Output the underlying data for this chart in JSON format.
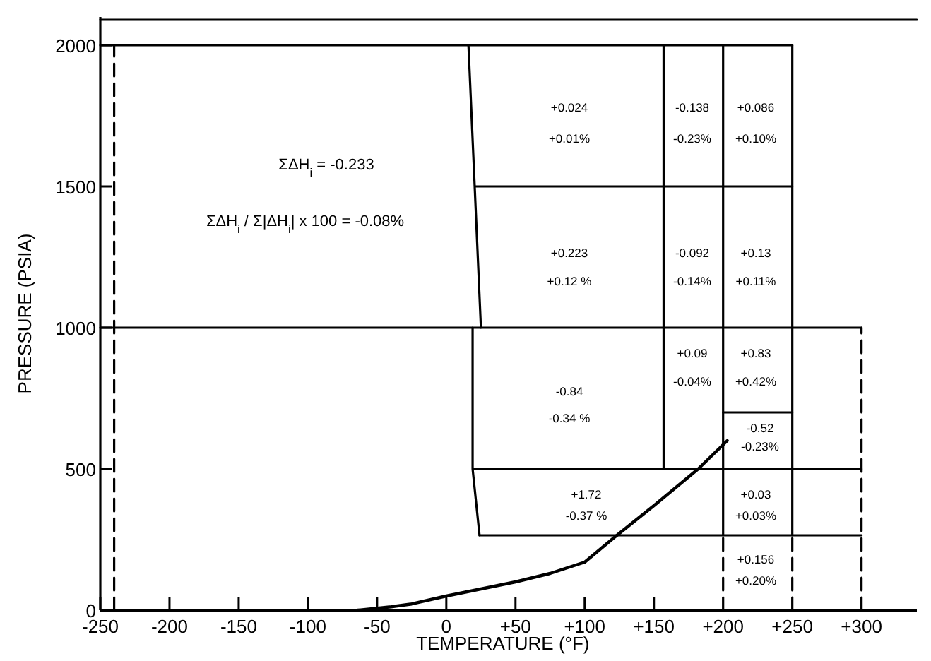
{
  "chart_data": {
    "type": "line",
    "xlabel": "TEMPERATURE (°F)",
    "ylabel": "PRESSURE (PSIA)",
    "xlim": [
      -250,
      340
    ],
    "ylim": [
      0,
      2100
    ],
    "xticks": [
      -250,
      -200,
      -150,
      -100,
      -50,
      0,
      {
        "value": 50,
        "label": "+50"
      },
      {
        "value": 100,
        "label": "+100"
      },
      {
        "value": 150,
        "label": "+150"
      },
      {
        "value": 200,
        "label": "+200"
      },
      {
        "value": 250,
        "label": "+250"
      },
      {
        "value": 300,
        "label": "+300"
      }
    ],
    "yticks": [
      0,
      500,
      1000,
      1500,
      2000
    ],
    "grid": false,
    "series": [
      {
        "color": "#000000",
        "line_style": "solid",
        "x": [
          -250,
          340
        ],
        "values": [
          2090,
          2090
        ]
      },
      {
        "color": "#000000",
        "line_style": "solid",
        "x": [
          -250,
          250
        ],
        "values": [
          2000,
          2000
        ]
      },
      {
        "color": "#000000",
        "line_style": "solid",
        "x": [
          21,
          250
        ],
        "values": [
          1500,
          1500
        ]
      },
      {
        "color": "#000000",
        "line_style": "solid",
        "x": [
          -250,
          300
        ],
        "values": [
          1000,
          1000
        ]
      },
      {
        "color": "#000000",
        "line_style": "solid",
        "x": [
          20,
          300
        ],
        "values": [
          500,
          500
        ]
      },
      {
        "color": "#000000",
        "line_style": "solid",
        "x": [
          24,
          300
        ],
        "values": [
          265,
          265
        ]
      },
      {
        "color": "#000000",
        "line_style": "solid",
        "x": [
          200,
          250
        ],
        "values": [
          700,
          700
        ]
      },
      {
        "color": "#000000",
        "line_style": "solid",
        "x": [
          16,
          25
        ],
        "values": [
          2000,
          1000
        ]
      },
      {
        "color": "#000000",
        "line_style": "solid",
        "x": [
          19,
          19,
          24
        ],
        "values": [
          1000,
          500,
          265
        ]
      },
      {
        "color": "#000000",
        "line_style": "solid",
        "x": [
          157,
          157
        ],
        "values": [
          2000,
          500
        ]
      },
      {
        "color": "#000000",
        "line_style": "solid",
        "x": [
          200,
          200
        ],
        "values": [
          2000,
          265
        ]
      },
      {
        "color": "#000000",
        "line_style": "dashed",
        "x": [
          200,
          200
        ],
        "values": [
          0,
          265
        ]
      },
      {
        "color": "#000000",
        "line_style": "solid",
        "x": [
          250,
          250
        ],
        "values": [
          2000,
          265
        ]
      },
      {
        "color": "#000000",
        "line_style": "dashed",
        "x": [
          250,
          250
        ],
        "values": [
          0,
          265
        ]
      },
      {
        "color": "#000000",
        "line_style": "dashed",
        "x": [
          300,
          300
        ],
        "values": [
          0,
          1000
        ]
      },
      {
        "color": "#000000",
        "line_style": "dashed",
        "x": [
          -240,
          -240
        ],
        "values": [
          0,
          2000
        ]
      },
      {
        "color": "#000000",
        "line_style": "solid",
        "x": [
          -64,
          -40,
          -25,
          0,
          25,
          50,
          75,
          100,
          122,
          150,
          182,
          203
        ],
        "values": [
          0,
          12,
          22,
          50,
          75,
          100,
          130,
          170,
          260,
          370,
          500,
          600
        ]
      }
    ],
    "annotations": [
      "ΣΔH$_{i}$ = -0.233",
      "ΣΔH$_{i}$ / Σ|ΔH$_{i}$| x 100 = -0.08%",
      "+0.024",
      "+0.01%",
      "-0.138",
      "-0.23%",
      "+0.086",
      "+0.10%",
      "+0.223",
      "+0.12 %",
      "-0.092",
      "-0.14%",
      "+0.13",
      "+0.11%",
      "-0.84",
      "-0.34 %",
      "+0.09",
      "-0.04%",
      "+0.83",
      "+0.42%",
      "-0.52",
      "-0.23%",
      "+1.72",
      "-0.37 %",
      "+0.03",
      "+0.03%",
      "+0.156",
      "+0.20%"
    ]
  }
}
